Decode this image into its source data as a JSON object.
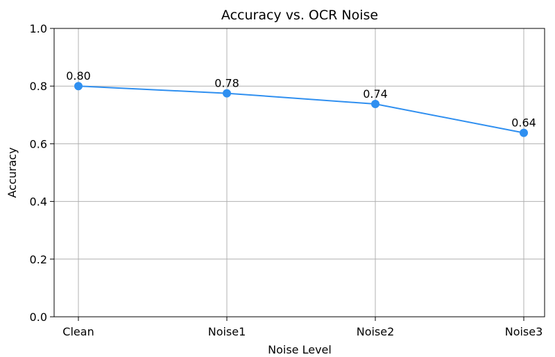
{
  "chart_data": {
    "type": "line",
    "title": "Accuracy vs. OCR Noise",
    "xlabel": "Noise Level",
    "ylabel": "Accuracy",
    "categories": [
      "Clean",
      "Noise1",
      "Noise2",
      "Noise3"
    ],
    "series": [
      {
        "values": [
          0.8,
          0.775,
          0.738,
          0.638
        ],
        "color": "#2f8ff0"
      }
    ],
    "data_labels": [
      "0.80",
      "0.78",
      "0.74",
      "0.64"
    ],
    "ylim": [
      0.0,
      1.0
    ],
    "yticks": [
      "0.0",
      "0.2",
      "0.4",
      "0.6",
      "0.8",
      "1.0"
    ],
    "grid": true,
    "marker": "circle"
  }
}
